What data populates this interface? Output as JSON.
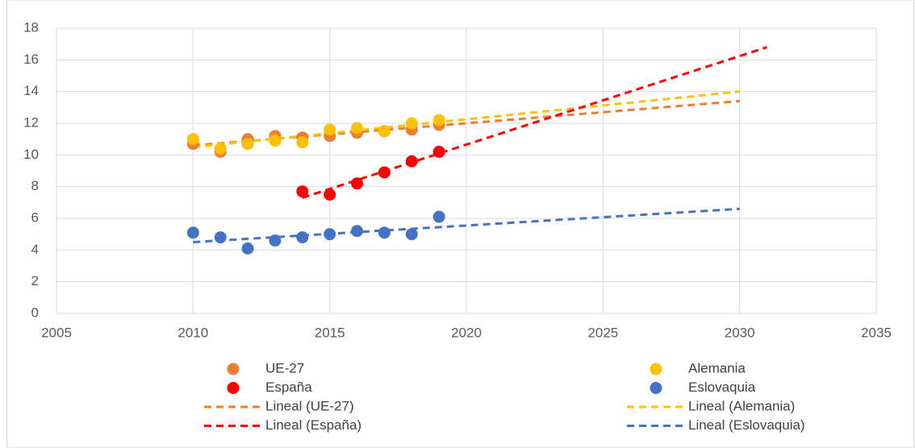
{
  "chart_data": {
    "type": "scatter",
    "xlim": [
      2005,
      2035
    ],
    "xticks": [
      2005,
      2010,
      2015,
      2020,
      2025,
      2030,
      2035
    ],
    "ylim": [
      0,
      18
    ],
    "yticks": [
      0,
      2,
      4,
      6,
      8,
      10,
      12,
      14,
      16,
      18
    ],
    "grid": true,
    "legend": "bottom",
    "series": [
      {
        "name": "UE-27",
        "color": "#ED7D31",
        "x": [
          2010,
          2011,
          2012,
          2013,
          2014,
          2015,
          2016,
          2017,
          2018,
          2019
        ],
        "values": [
          10.7,
          10.2,
          11.0,
          11.2,
          11.1,
          11.2,
          11.4,
          11.5,
          11.6,
          11.9
        ]
      },
      {
        "name": "Alemania",
        "color": "#FFC000",
        "x": [
          2010,
          2011,
          2012,
          2013,
          2014,
          2015,
          2016,
          2017,
          2018,
          2019
        ],
        "values": [
          11.0,
          10.4,
          10.7,
          10.9,
          10.8,
          11.6,
          11.7,
          11.5,
          12.0,
          12.2
        ]
      },
      {
        "name": "España",
        "color": "#FF0000",
        "x": [
          2014,
          2015,
          2016,
          2017,
          2018,
          2019
        ],
        "values": [
          7.7,
          7.5,
          8.2,
          8.9,
          9.6,
          10.2
        ]
      },
      {
        "name": "Eslovaquia",
        "color": "#4472C4",
        "x": [
          2010,
          2011,
          2012,
          2013,
          2014,
          2015,
          2016,
          2017,
          2018,
          2019
        ],
        "values": [
          5.1,
          4.8,
          4.1,
          4.6,
          4.8,
          5.0,
          5.2,
          5.1,
          5.0,
          6.1
        ]
      }
    ],
    "trendlines": [
      {
        "name": "Lineal (UE-27)",
        "color": "#ED7D31",
        "x": [
          2010,
          2030
        ],
        "values": [
          10.6,
          13.4
        ]
      },
      {
        "name": "Lineal (Alemania)",
        "color": "#FFC000",
        "x": [
          2010,
          2030
        ],
        "values": [
          10.5,
          14.0
        ]
      },
      {
        "name": "Lineal (España)",
        "color": "#FF0000",
        "x": [
          2014,
          2031
        ],
        "values": [
          7.3,
          16.8
        ]
      },
      {
        "name": "Lineal (Eslovaquia)",
        "color": "#4472C4",
        "x": [
          2010,
          2030
        ],
        "values": [
          4.5,
          6.6
        ]
      }
    ]
  }
}
